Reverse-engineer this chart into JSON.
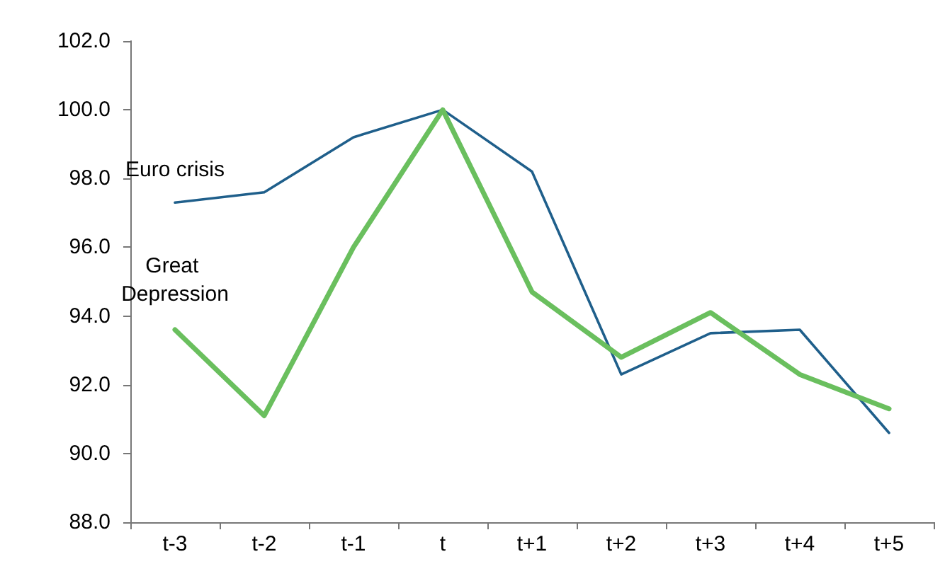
{
  "chart_data": {
    "type": "line",
    "categories": [
      "t-3",
      "t-2",
      "t-1",
      "t",
      "t+1",
      "t+2",
      "t+3",
      "t+4",
      "t+5"
    ],
    "series": [
      {
        "name": "Euro crisis",
        "color": "#1f5f8b",
        "values": [
          97.3,
          97.6,
          99.2,
          100.0,
          98.2,
          92.3,
          93.5,
          93.6,
          90.6
        ]
      },
      {
        "name": "Great Depression",
        "color": "#6abf5e",
        "values": [
          93.6,
          91.1,
          96.0,
          100.0,
          94.7,
          92.8,
          94.1,
          92.3,
          91.3
        ]
      }
    ],
    "ylim": [
      88,
      102
    ],
    "yticks": [
      {
        "value": 88,
        "label": "88.0"
      },
      {
        "value": 90,
        "label": "90.0"
      },
      {
        "value": 92,
        "label": "92.0"
      },
      {
        "value": 94,
        "label": "94.0"
      },
      {
        "value": 96,
        "label": "96.0"
      },
      {
        "value": 98,
        "label": "98.0"
      },
      {
        "value": 100,
        "label": "100.0"
      },
      {
        "value": 102,
        "label": "102.0"
      }
    ],
    "grid": false,
    "legend": false,
    "marker": "none",
    "line_style": "solid"
  }
}
